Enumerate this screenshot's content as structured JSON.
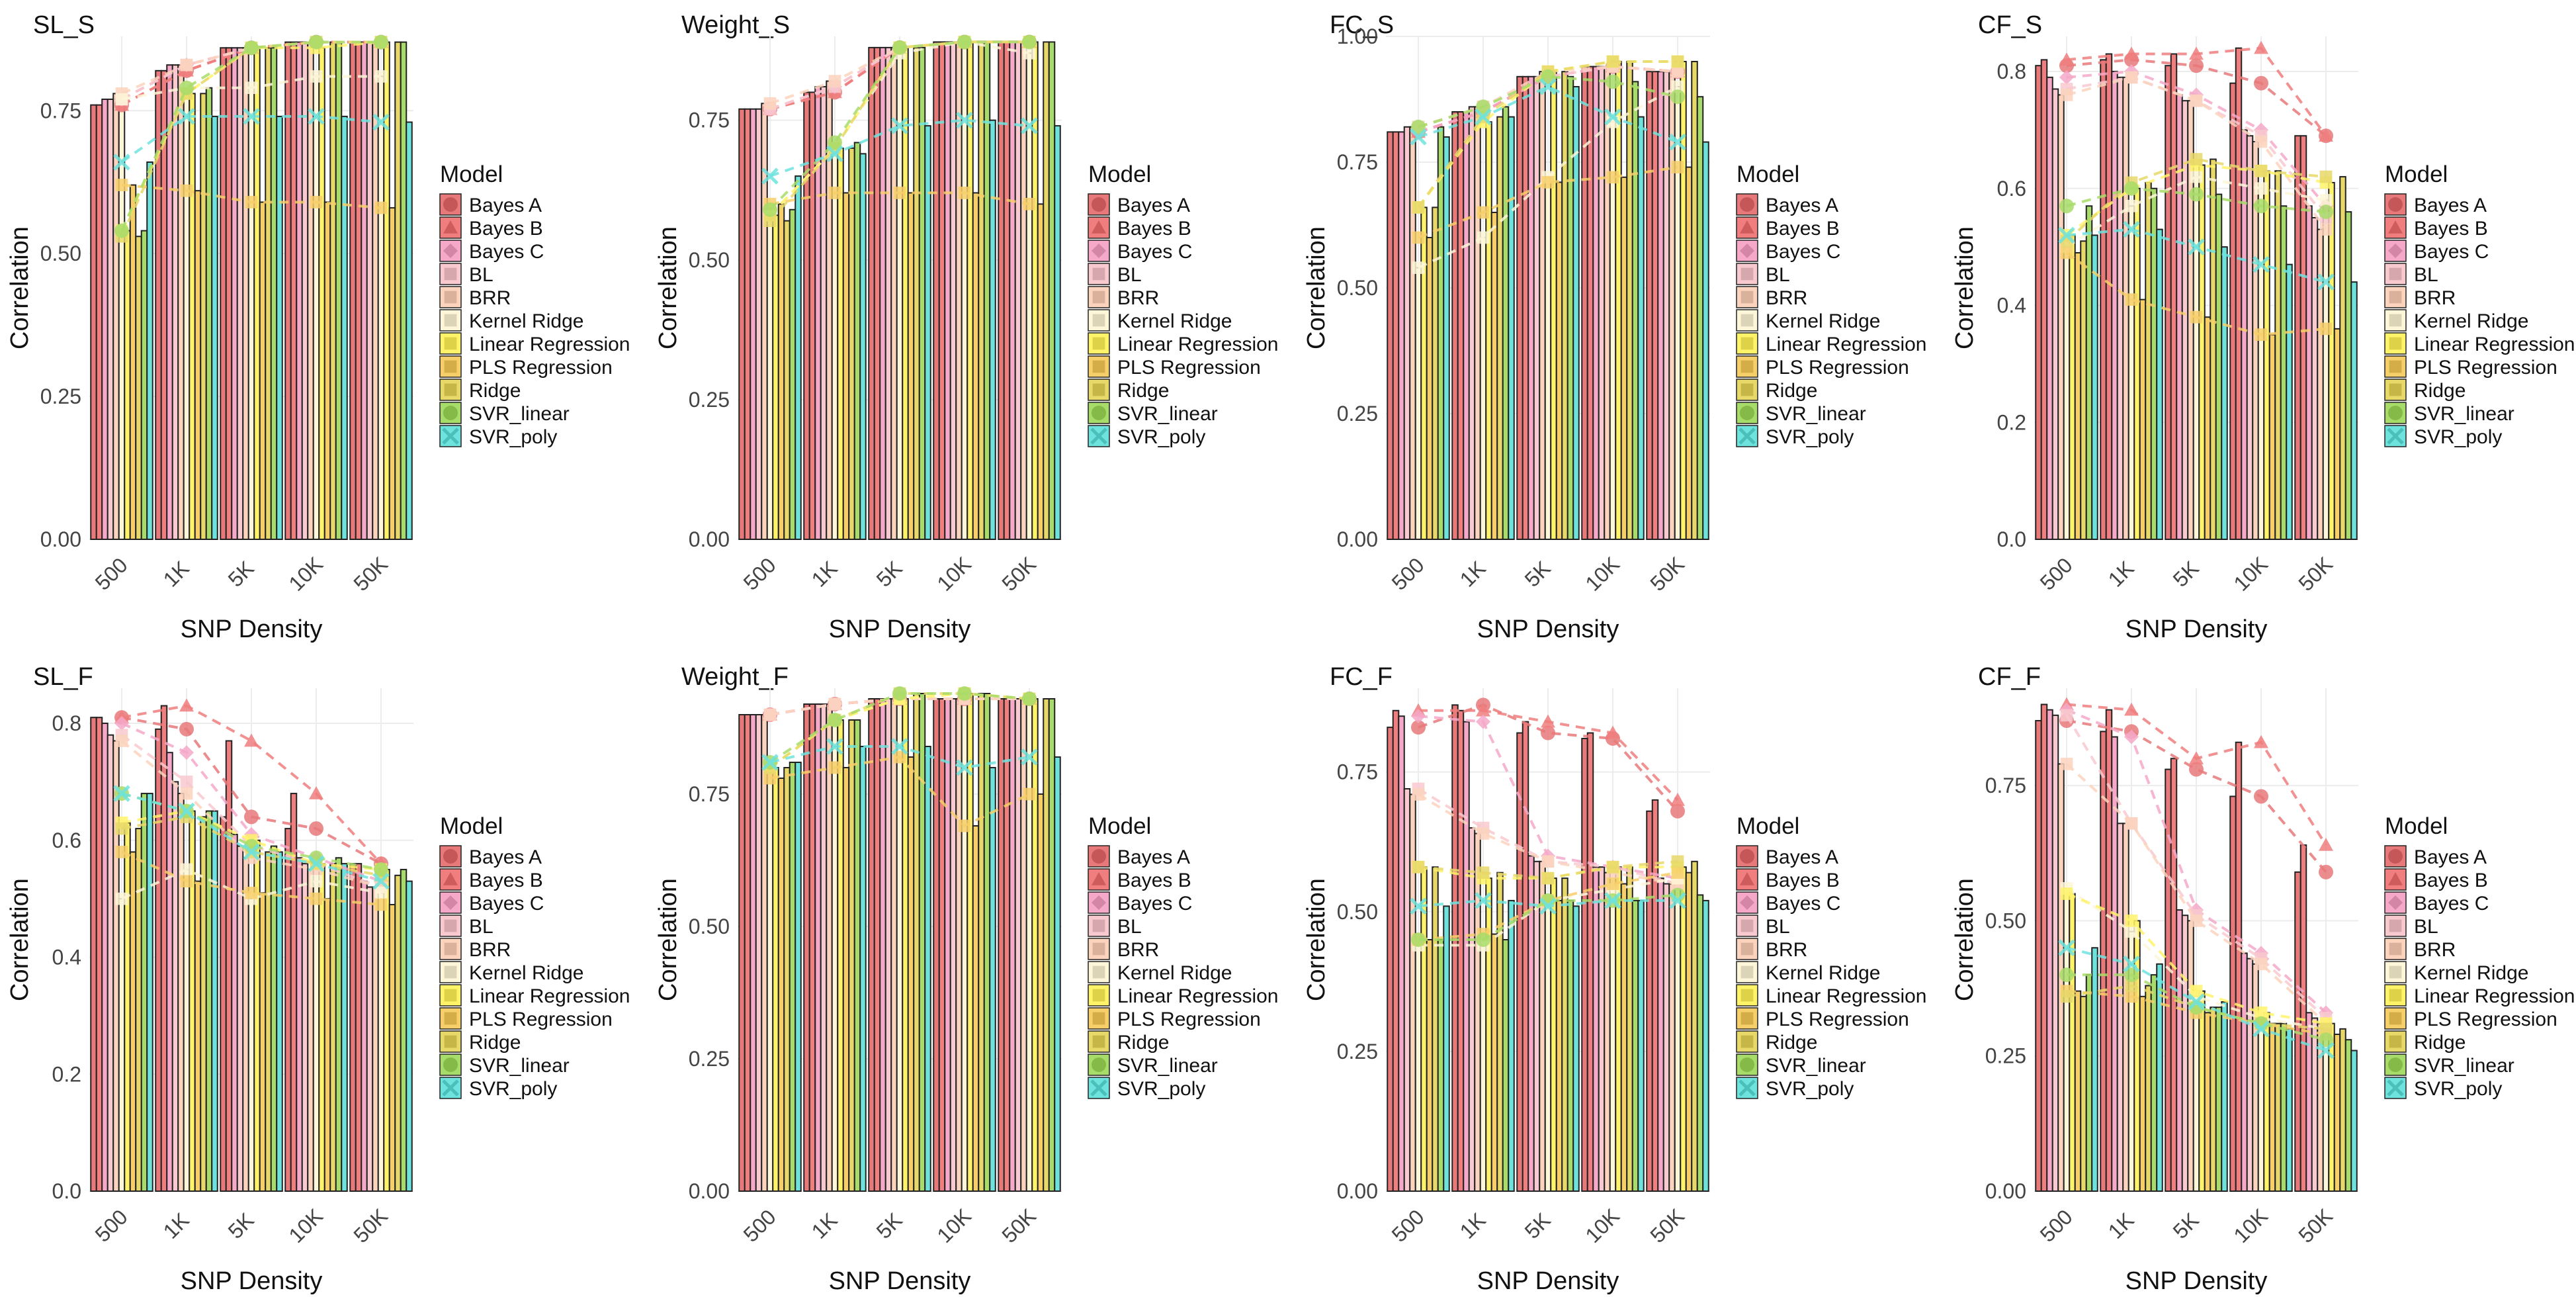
{
  "figure": {
    "legend_title": "Model",
    "xlabel": "SNP Density",
    "ylabel": "Correlation"
  },
  "models": [
    {
      "name": "Bayes A",
      "color": "#e8797a",
      "marker": "circle"
    },
    {
      "name": "Bayes B",
      "color": "#f07e7e",
      "marker": "triangle"
    },
    {
      "name": "Bayes C",
      "color": "#f5a8c8",
      "marker": "diamond"
    },
    {
      "name": "BL",
      "color": "#f8c9cf",
      "marker": "square"
    },
    {
      "name": "BRR",
      "color": "#fcd3bd",
      "marker": "square"
    },
    {
      "name": "Kernel Ridge",
      "color": "#fdf6d8",
      "marker": "square"
    },
    {
      "name": "Linear Regression",
      "color": "#fff36a",
      "marker": "square"
    },
    {
      "name": "PLS Regression",
      "color": "#f7cf6a",
      "marker": "square"
    },
    {
      "name": "Ridge",
      "color": "#e7d86a",
      "marker": "square"
    },
    {
      "name": "SVR_linear",
      "color": "#a8dc6a",
      "marker": "circle"
    },
    {
      "name": "SVR_poly",
      "color": "#6ee3de",
      "marker": "x"
    }
  ],
  "chart_data": [
    {
      "type": "bar",
      "title": "SL_S",
      "xlabel": "SNP Density",
      "ylabel": "Correlation",
      "categories": [
        "500",
        "1K",
        "5K",
        "10K",
        "50K"
      ],
      "ylim": [
        0,
        0.88
      ],
      "yticks": [
        "0.00",
        "0.25",
        "0.50",
        "0.75"
      ],
      "grid": true,
      "legend": "right",
      "series": [
        {
          "name": "Bayes A",
          "values": [
            0.76,
            0.82,
            0.86,
            0.87,
            0.87
          ]
        },
        {
          "name": "Bayes B",
          "values": [
            0.76,
            0.82,
            0.86,
            0.87,
            0.87
          ]
        },
        {
          "name": "Bayes C",
          "values": [
            0.77,
            0.83,
            0.86,
            0.87,
            0.87
          ]
        },
        {
          "name": "BL",
          "values": [
            0.77,
            0.83,
            0.86,
            0.87,
            0.87
          ]
        },
        {
          "name": "BRR",
          "values": [
            0.78,
            0.83,
            0.86,
            0.87,
            0.87
          ]
        },
        {
          "name": "Kernel Ridge",
          "values": [
            0.77,
            0.79,
            0.79,
            0.81,
            0.81
          ]
        },
        {
          "name": "Linear Regression",
          "values": [
            0.54,
            0.78,
            0.86,
            0.86,
            0.87
          ]
        },
        {
          "name": "PLS Regression",
          "values": [
            0.62,
            0.61,
            0.59,
            0.59,
            0.58
          ]
        },
        {
          "name": "Ridge",
          "values": [
            0.53,
            0.78,
            0.86,
            0.87,
            0.87
          ]
        },
        {
          "name": "SVR_linear",
          "values": [
            0.54,
            0.79,
            0.86,
            0.87,
            0.87
          ]
        },
        {
          "name": "SVR_poly",
          "values": [
            0.66,
            0.74,
            0.74,
            0.74,
            0.73
          ]
        }
      ]
    },
    {
      "type": "bar",
      "title": "Weight_S",
      "xlabel": "SNP Density",
      "ylabel": "Correlation",
      "categories": [
        "500",
        "1K",
        "5K",
        "10K",
        "50K"
      ],
      "ylim": [
        0,
        0.9
      ],
      "yticks": [
        "0.00",
        "0.25",
        "0.50",
        "0.75"
      ],
      "grid": true,
      "legend": "right",
      "series": [
        {
          "name": "Bayes A",
          "values": [
            0.77,
            0.8,
            0.88,
            0.89,
            0.89
          ]
        },
        {
          "name": "Bayes B",
          "values": [
            0.77,
            0.8,
            0.88,
            0.89,
            0.89
          ]
        },
        {
          "name": "Bayes C",
          "values": [
            0.77,
            0.81,
            0.88,
            0.89,
            0.89
          ]
        },
        {
          "name": "BL",
          "values": [
            0.77,
            0.81,
            0.88,
            0.89,
            0.89
          ]
        },
        {
          "name": "BRR",
          "values": [
            0.78,
            0.82,
            0.88,
            0.89,
            0.89
          ]
        },
        {
          "name": "Kernel Ridge",
          "values": [
            0.58,
            0.7,
            0.87,
            0.89,
            0.87
          ]
        },
        {
          "name": "Linear Regression",
          "values": [
            0.58,
            0.7,
            0.88,
            0.89,
            0.89
          ]
        },
        {
          "name": "PLS Regression",
          "values": [
            0.6,
            0.62,
            0.62,
            0.62,
            0.6
          ]
        },
        {
          "name": "Ridge",
          "values": [
            0.57,
            0.7,
            0.88,
            0.89,
            0.89
          ]
        },
        {
          "name": "SVR_linear",
          "values": [
            0.59,
            0.71,
            0.88,
            0.89,
            0.89
          ]
        },
        {
          "name": "SVR_poly",
          "values": [
            0.65,
            0.69,
            0.74,
            0.75,
            0.74
          ]
        }
      ]
    },
    {
      "type": "bar",
      "title": "FC_S",
      "xlabel": "SNP Density",
      "ylabel": "Correlation",
      "categories": [
        "500",
        "1K",
        "5K",
        "10K",
        "50K"
      ],
      "ylim": [
        0,
        1.0
      ],
      "yticks": [
        "0.00",
        "0.25",
        "0.50",
        "0.75",
        "1.00"
      ],
      "grid": true,
      "legend": "right",
      "series": [
        {
          "name": "Bayes A",
          "values": [
            0.81,
            0.85,
            0.92,
            0.94,
            0.93
          ]
        },
        {
          "name": "Bayes B",
          "values": [
            0.81,
            0.85,
            0.92,
            0.94,
            0.93
          ]
        },
        {
          "name": "Bayes C",
          "values": [
            0.81,
            0.85,
            0.92,
            0.94,
            0.93
          ]
        },
        {
          "name": "BL",
          "values": [
            0.82,
            0.86,
            0.92,
            0.94,
            0.93
          ]
        },
        {
          "name": "BRR",
          "values": [
            0.82,
            0.86,
            0.93,
            0.94,
            0.93
          ]
        },
        {
          "name": "Kernel Ridge",
          "values": [
            0.54,
            0.6,
            0.72,
            0.83,
            0.9
          ]
        },
        {
          "name": "Linear Regression",
          "values": [
            0.66,
            0.83,
            0.93,
            0.95,
            0.95
          ]
        },
        {
          "name": "PLS Regression",
          "values": [
            0.6,
            0.65,
            0.71,
            0.72,
            0.74
          ]
        },
        {
          "name": "Ridge",
          "values": [
            0.66,
            0.84,
            0.93,
            0.95,
            0.95
          ]
        },
        {
          "name": "SVR_linear",
          "values": [
            0.82,
            0.86,
            0.92,
            0.91,
            0.88
          ]
        },
        {
          "name": "SVR_poly",
          "values": [
            0.8,
            0.84,
            0.9,
            0.84,
            0.79
          ]
        }
      ]
    },
    {
      "type": "bar",
      "title": "CF_S",
      "xlabel": "SNP Density",
      "ylabel": "Correlation",
      "categories": [
        "500",
        "1K",
        "5K",
        "10K",
        "50K"
      ],
      "ylim": [
        0,
        0.86
      ],
      "yticks": [
        "0.0",
        "0.2",
        "0.4",
        "0.6",
        "0.8"
      ],
      "grid": true,
      "legend": "right",
      "series": [
        {
          "name": "Bayes A",
          "values": [
            0.81,
            0.82,
            0.81,
            0.78,
            0.69
          ]
        },
        {
          "name": "Bayes B",
          "values": [
            0.82,
            0.83,
            0.83,
            0.84,
            0.69
          ]
        },
        {
          "name": "Bayes C",
          "values": [
            0.79,
            0.8,
            0.76,
            0.7,
            0.57
          ]
        },
        {
          "name": "BL",
          "values": [
            0.77,
            0.79,
            0.75,
            0.69,
            0.55
          ]
        },
        {
          "name": "BRR",
          "values": [
            0.76,
            0.79,
            0.75,
            0.68,
            0.53
          ]
        },
        {
          "name": "Kernel Ridge",
          "values": [
            0.5,
            0.57,
            0.62,
            0.6,
            0.58
          ]
        },
        {
          "name": "Linear Regression",
          "values": [
            0.52,
            0.6,
            0.64,
            0.63,
            0.61
          ]
        },
        {
          "name": "PLS Regression",
          "values": [
            0.49,
            0.41,
            0.38,
            0.35,
            0.36
          ]
        },
        {
          "name": "Ridge",
          "values": [
            0.51,
            0.61,
            0.65,
            0.63,
            0.62
          ]
        },
        {
          "name": "SVR_linear",
          "values": [
            0.57,
            0.6,
            0.59,
            0.57,
            0.56
          ]
        },
        {
          "name": "SVR_poly",
          "values": [
            0.52,
            0.53,
            0.5,
            0.47,
            0.44
          ]
        }
      ]
    },
    {
      "type": "bar",
      "title": "SL_F",
      "xlabel": "SNP Density",
      "ylabel": "Correlation",
      "categories": [
        "500",
        "1K",
        "5K",
        "10K",
        "50K"
      ],
      "ylim": [
        0,
        0.86
      ],
      "yticks": [
        "0.0",
        "0.2",
        "0.4",
        "0.6",
        "0.8"
      ],
      "grid": true,
      "legend": "right",
      "series": [
        {
          "name": "Bayes A",
          "values": [
            0.81,
            0.79,
            0.64,
            0.62,
            0.56
          ]
        },
        {
          "name": "Bayes B",
          "values": [
            0.81,
            0.83,
            0.77,
            0.68,
            0.56
          ]
        },
        {
          "name": "Bayes C",
          "values": [
            0.8,
            0.75,
            0.61,
            0.57,
            0.53
          ]
        },
        {
          "name": "BL",
          "values": [
            0.78,
            0.7,
            0.59,
            0.56,
            0.52
          ]
        },
        {
          "name": "BRR",
          "values": [
            0.77,
            0.68,
            0.57,
            0.55,
            0.52
          ]
        },
        {
          "name": "Kernel Ridge",
          "values": [
            0.5,
            0.55,
            0.5,
            0.53,
            0.51
          ]
        },
        {
          "name": "Linear Regression",
          "values": [
            0.63,
            0.65,
            0.6,
            0.56,
            0.55
          ]
        },
        {
          "name": "PLS Regression",
          "values": [
            0.58,
            0.53,
            0.51,
            0.5,
            0.49
          ]
        },
        {
          "name": "Ridge",
          "values": [
            0.62,
            0.64,
            0.58,
            0.56,
            0.54
          ]
        },
        {
          "name": "SVR_linear",
          "values": [
            0.68,
            0.65,
            0.59,
            0.57,
            0.55
          ]
        },
        {
          "name": "SVR_poly",
          "values": [
            0.68,
            0.65,
            0.58,
            0.56,
            0.53
          ]
        }
      ]
    },
    {
      "type": "bar",
      "title": "Weight_F",
      "xlabel": "SNP Density",
      "ylabel": "Correlation",
      "categories": [
        "500",
        "1K",
        "5K",
        "10K",
        "50K"
      ],
      "ylim": [
        0,
        0.95
      ],
      "yticks": [
        "0.00",
        "0.25",
        "0.50",
        "0.75"
      ],
      "grid": true,
      "legend": "right",
      "series": [
        {
          "name": "Bayes A",
          "values": [
            0.9,
            0.92,
            0.93,
            0.93,
            0.93
          ]
        },
        {
          "name": "Bayes B",
          "values": [
            0.9,
            0.92,
            0.93,
            0.93,
            0.93
          ]
        },
        {
          "name": "Bayes C",
          "values": [
            0.9,
            0.92,
            0.93,
            0.93,
            0.93
          ]
        },
        {
          "name": "BL",
          "values": [
            0.9,
            0.92,
            0.93,
            0.93,
            0.93
          ]
        },
        {
          "name": "BRR",
          "values": [
            0.9,
            0.92,
            0.93,
            0.93,
            0.93
          ]
        },
        {
          "name": "Kernel Ridge",
          "values": [
            0.8,
            0.89,
            0.93,
            0.94,
            0.93
          ]
        },
        {
          "name": "Linear Regression",
          "values": [
            0.8,
            0.89,
            0.93,
            0.94,
            0.93
          ]
        },
        {
          "name": "PLS Regression",
          "values": [
            0.78,
            0.8,
            0.82,
            0.69,
            0.75
          ]
        },
        {
          "name": "Ridge",
          "values": [
            0.8,
            0.89,
            0.94,
            0.94,
            0.93
          ]
        },
        {
          "name": "SVR_linear",
          "values": [
            0.81,
            0.89,
            0.94,
            0.94,
            0.93
          ]
        },
        {
          "name": "SVR_poly",
          "values": [
            0.81,
            0.84,
            0.84,
            0.8,
            0.82
          ]
        }
      ]
    },
    {
      "type": "bar",
      "title": "FC_F",
      "xlabel": "SNP Density",
      "ylabel": "Correlation",
      "categories": [
        "500",
        "1K",
        "5K",
        "10K",
        "50K"
      ],
      "ylim": [
        0,
        0.9
      ],
      "yticks": [
        "0.00",
        "0.25",
        "0.50",
        "0.75"
      ],
      "grid": true,
      "legend": "right",
      "series": [
        {
          "name": "Bayes A",
          "values": [
            0.83,
            0.87,
            0.82,
            0.81,
            0.68
          ]
        },
        {
          "name": "Bayes B",
          "values": [
            0.86,
            0.86,
            0.84,
            0.82,
            0.7
          ]
        },
        {
          "name": "Bayes C",
          "values": [
            0.85,
            0.84,
            0.6,
            0.58,
            0.56
          ]
        },
        {
          "name": "BL",
          "values": [
            0.72,
            0.65,
            0.59,
            0.58,
            0.55
          ]
        },
        {
          "name": "BRR",
          "values": [
            0.71,
            0.64,
            0.59,
            0.57,
            0.55
          ]
        },
        {
          "name": "Kernel Ridge",
          "values": [
            0.44,
            0.44,
            0.52,
            0.54,
            0.56
          ]
        },
        {
          "name": "Linear Regression",
          "values": [
            0.58,
            0.56,
            0.56,
            0.58,
            0.58
          ]
        },
        {
          "name": "PLS Regression",
          "values": [
            0.45,
            0.46,
            0.52,
            0.55,
            0.57
          ]
        },
        {
          "name": "Ridge",
          "values": [
            0.58,
            0.57,
            0.56,
            0.58,
            0.59
          ]
        },
        {
          "name": "SVR_linear",
          "values": [
            0.45,
            0.45,
            0.52,
            0.52,
            0.53
          ]
        },
        {
          "name": "SVR_poly",
          "values": [
            0.51,
            0.52,
            0.51,
            0.52,
            0.52
          ]
        }
      ]
    },
    {
      "type": "bar",
      "title": "CF_F",
      "xlabel": "SNP Density",
      "ylabel": "Correlation",
      "categories": [
        "500",
        "1K",
        "5K",
        "10K",
        "50K"
      ],
      "ylim": [
        0,
        0.93
      ],
      "yticks": [
        "0.00",
        "0.25",
        "0.50",
        "0.75"
      ],
      "grid": true,
      "legend": "right",
      "series": [
        {
          "name": "Bayes A",
          "values": [
            0.87,
            0.85,
            0.78,
            0.73,
            0.59
          ]
        },
        {
          "name": "Bayes B",
          "values": [
            0.9,
            0.89,
            0.8,
            0.83,
            0.64
          ]
        },
        {
          "name": "Bayes C",
          "values": [
            0.89,
            0.84,
            0.52,
            0.44,
            0.33
          ]
        },
        {
          "name": "BL",
          "values": [
            0.88,
            0.68,
            0.51,
            0.43,
            0.32
          ]
        },
        {
          "name": "BRR",
          "values": [
            0.79,
            0.68,
            0.5,
            0.42,
            0.31
          ]
        },
        {
          "name": "Kernel Ridge",
          "values": [
            0.56,
            0.48,
            0.36,
            0.32,
            0.3
          ]
        },
        {
          "name": "Linear Regression",
          "values": [
            0.55,
            0.5,
            0.37,
            0.33,
            0.31
          ]
        },
        {
          "name": "PLS Regression",
          "values": [
            0.37,
            0.36,
            0.33,
            0.31,
            0.29
          ]
        },
        {
          "name": "Ridge",
          "values": [
            0.36,
            0.38,
            0.34,
            0.31,
            0.3
          ]
        },
        {
          "name": "SVR_linear",
          "values": [
            0.4,
            0.4,
            0.34,
            0.31,
            0.28
          ]
        },
        {
          "name": "SVR_poly",
          "values": [
            0.45,
            0.42,
            0.35,
            0.3,
            0.26
          ]
        }
      ]
    }
  ]
}
